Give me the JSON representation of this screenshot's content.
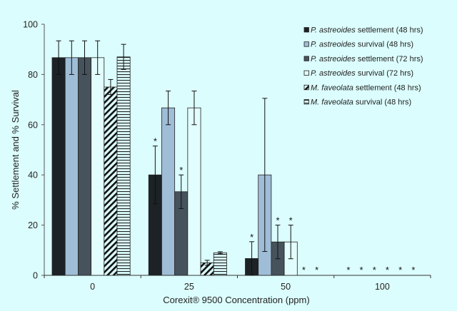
{
  "chart_data": {
    "type": "bar",
    "title": "",
    "xlabel": "Corexit® 9500 Concentration (ppm)",
    "ylabel": "% Settlement and % Survival",
    "ylim": [
      0,
      100
    ],
    "yticks": [
      "0",
      "20",
      "40",
      "60",
      "80",
      "100"
    ],
    "categories": [
      "0",
      "25",
      "50",
      "100"
    ],
    "legend_position": "top-right",
    "series": [
      {
        "name_italic": "P. astreoides",
        "name_rest": " settlement (48 hrs)",
        "fill": "#1c2226",
        "pattern": "solid",
        "values": [
          86.7,
          40,
          6.7,
          0
        ],
        "errors": [
          6.7,
          11.5,
          6.7,
          0
        ],
        "significant": [
          false,
          true,
          true,
          true
        ]
      },
      {
        "name_italic": "P. astreoides",
        "name_rest": " survival (48 hrs)",
        "fill": "#9fbdd6",
        "pattern": "solid",
        "values": [
          86.7,
          66.7,
          40,
          0
        ],
        "errors": [
          6.7,
          6.7,
          30.5,
          0
        ],
        "significant": [
          false,
          false,
          false,
          true
        ]
      },
      {
        "name_italic": "P. astreoides",
        "name_rest": " settlement (72 hrs)",
        "fill": "#46535c",
        "pattern": "solid",
        "values": [
          86.7,
          33.3,
          13.3,
          0
        ],
        "errors": [
          6.7,
          6.7,
          6.7,
          0
        ],
        "significant": [
          false,
          true,
          true,
          true
        ]
      },
      {
        "name_italic": "P. astreoides",
        "name_rest": " survival (72 hrs)",
        "fill": "#e2fdfd",
        "pattern": "solid",
        "values": [
          86.7,
          66.7,
          13.3,
          0
        ],
        "errors": [
          6.7,
          6.7,
          6.7,
          0
        ],
        "significant": [
          false,
          false,
          true,
          true
        ]
      },
      {
        "name_italic": "M. faveolata",
        "name_rest": " settlement (48 hrs)",
        "fill": "#dcfdfd",
        "pattern": "diagonal",
        "values": [
          75,
          5,
          0,
          0
        ],
        "errors": [
          3,
          1,
          0,
          0
        ],
        "significant": [
          false,
          false,
          true,
          true
        ]
      },
      {
        "name_italic": "M. faveolata",
        "name_rest": " survival (48 hrs)",
        "fill": "#dcfdfd",
        "pattern": "horizontal",
        "values": [
          87,
          9,
          0,
          0
        ],
        "errors": [
          5,
          0.4,
          0,
          0
        ],
        "significant": [
          false,
          false,
          true,
          true
        ]
      }
    ]
  }
}
